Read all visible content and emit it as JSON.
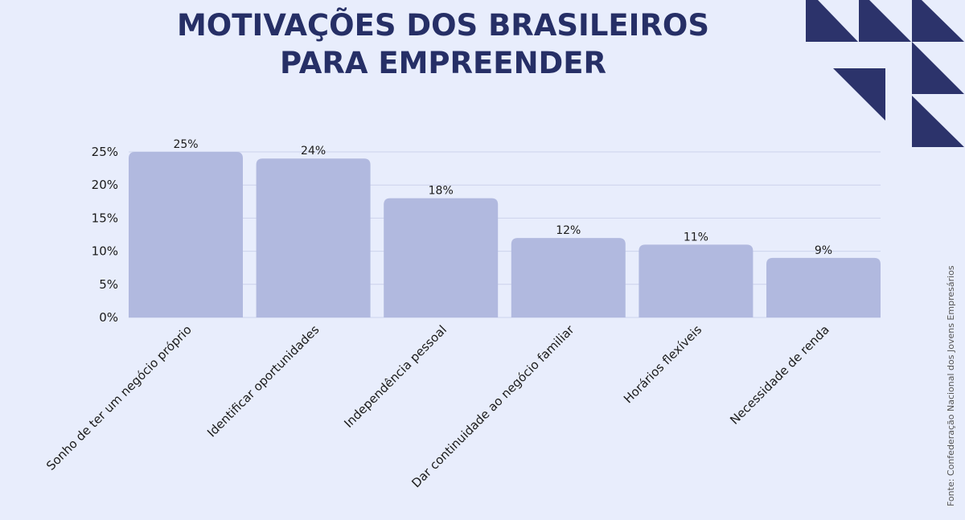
{
  "chart_data": {
    "type": "bar",
    "title_lines": [
      "MOTIVAÇÕES DOS BRASILEIROS",
      "PARA EMPREENDER"
    ],
    "categories": [
      "Sonho de ter um negócio próprio",
      "Identificar oportunidades",
      "Independência pessoal",
      "Dar continuidade ao negócio familiar",
      "Horários flexíveis",
      "Necessidade de renda"
    ],
    "values": [
      25,
      24,
      18,
      12,
      11,
      9
    ],
    "data_labels": [
      "25%",
      "24%",
      "18%",
      "12%",
      "11%",
      "9%"
    ],
    "yticks": [
      0,
      5,
      10,
      15,
      20,
      25
    ],
    "ytick_labels": [
      "0%",
      "5%",
      "10%",
      "15%",
      "20%",
      "25%"
    ],
    "ylim": [
      0,
      25
    ],
    "grid": true,
    "source": "Fonte: Confederação Nacional dos Jovens Empresários",
    "colors": {
      "bar": "#b1b9df",
      "background": "#e8edfc",
      "title": "#262f66",
      "decor": "#2c336b",
      "grid": "#ccd2ec"
    }
  }
}
